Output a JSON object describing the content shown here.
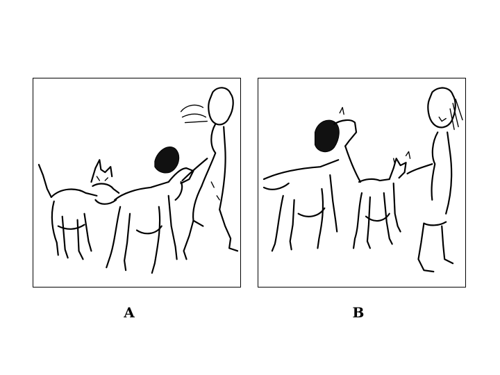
{
  "panels": [
    {
      "id": "A",
      "label": "A"
    },
    {
      "id": "B",
      "label": "B"
    }
  ]
}
